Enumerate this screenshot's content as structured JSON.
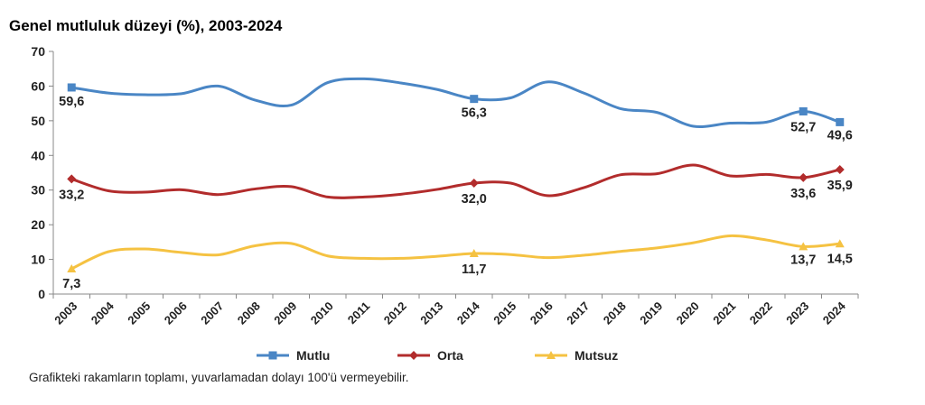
{
  "chart_data": {
    "type": "line",
    "title": "Genel mutluluk düzeyi (%), 2003-2024",
    "x": [
      "2003",
      "2004",
      "2005",
      "2006",
      "2007",
      "2008",
      "2009",
      "2010",
      "2011",
      "2012",
      "2013",
      "2014",
      "2015",
      "2016",
      "2017",
      "2018",
      "2019",
      "2020",
      "2021",
      "2022",
      "2023",
      "2024"
    ],
    "ylim": [
      0,
      70
    ],
    "yticks": [
      "0",
      "10",
      "20",
      "30",
      "40",
      "50",
      "60",
      "70"
    ],
    "grid": false,
    "legend_position": "bottom",
    "series": [
      {
        "name": "Mutlu",
        "color": "#4a86c5",
        "marker": "square",
        "values": [
          59.6,
          58.0,
          57.5,
          57.8,
          60.0,
          56.0,
          54.5,
          61.0,
          62.1,
          60.9,
          59.0,
          56.3,
          56.6,
          61.2,
          58.0,
          53.5,
          52.4,
          48.4,
          49.3,
          49.6,
          52.7,
          49.6
        ],
        "labels": [
          {
            "index": 0,
            "text": "59,6"
          },
          {
            "index": 11,
            "text": "56,3"
          },
          {
            "index": 20,
            "text": "52,7"
          },
          {
            "index": 21,
            "text": "49,6"
          }
        ]
      },
      {
        "name": "Orta",
        "color": "#b22c2c",
        "marker": "diamond",
        "values": [
          33.2,
          29.8,
          29.4,
          30.1,
          28.7,
          30.3,
          31.0,
          28.0,
          28.0,
          28.8,
          30.2,
          32.0,
          32.0,
          28.4,
          30.7,
          34.4,
          34.7,
          37.2,
          34.1,
          34.5,
          33.6,
          35.9
        ],
        "labels": [
          {
            "index": 0,
            "text": "33,2"
          },
          {
            "index": 11,
            "text": "32,0"
          },
          {
            "index": 20,
            "text": "33,6"
          },
          {
            "index": 21,
            "text": "35,9"
          }
        ]
      },
      {
        "name": "Mutsuz",
        "color": "#f5c242",
        "marker": "triangle",
        "values": [
          7.3,
          12.2,
          13.0,
          12.0,
          11.3,
          13.9,
          14.6,
          11.0,
          10.3,
          10.3,
          10.9,
          11.7,
          11.4,
          10.5,
          11.2,
          12.3,
          13.3,
          14.8,
          16.8,
          15.6,
          13.7,
          14.5
        ],
        "labels": [
          {
            "index": 0,
            "text": "7,3"
          },
          {
            "index": 11,
            "text": "11,7"
          },
          {
            "index": 20,
            "text": "13,7"
          },
          {
            "index": 21,
            "text": "14,5"
          }
        ]
      }
    ]
  },
  "footnote": "Grafikteki rakamların toplamı, yuvarlamadan dolayı 100'ü vermeyebilir."
}
